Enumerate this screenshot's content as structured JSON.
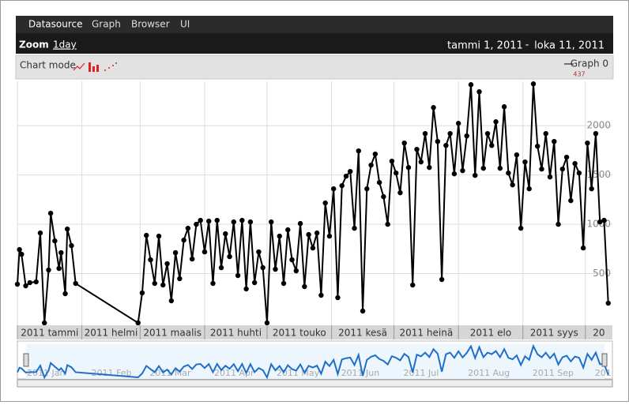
{
  "nav": [
    "Datasource",
    "Graph",
    "Browser",
    "UI"
  ],
  "zoom": {
    "label": "Zoom",
    "preset": "1day"
  },
  "range": {
    "start": "tammi 1, 2011",
    "separator": "-",
    "end": "loka 11, 2011"
  },
  "chart_mode": "Chart mode",
  "chart_data": {
    "type": "line",
    "x": [
      0,
      1,
      2,
      4,
      6,
      9,
      11,
      13,
      15,
      16,
      18,
      20,
      21,
      23,
      24,
      26,
      28,
      58,
      60,
      62,
      64,
      66,
      68,
      70,
      72,
      74,
      76,
      78,
      80,
      82,
      84,
      86,
      88,
      90,
      92,
      94,
      96,
      98,
      100,
      102,
      104,
      106,
      108,
      110,
      112,
      114,
      116,
      118,
      120,
      122,
      124,
      126,
      128,
      130,
      132,
      134,
      136,
      138,
      140,
      142,
      144,
      146,
      148,
      150,
      152,
      154,
      156,
      158,
      160,
      162,
      164,
      166,
      168,
      170,
      172,
      174,
      176,
      178,
      180,
      182,
      184,
      186,
      188,
      190,
      192,
      194,
      196,
      198,
      200,
      202,
      204,
      206,
      208,
      210,
      212,
      214,
      216,
      218,
      220,
      222,
      224,
      226,
      228,
      230,
      232,
      234,
      236,
      238,
      240,
      242,
      244,
      246,
      248,
      250,
      252,
      254,
      256,
      258,
      260,
      262,
      264,
      266,
      268,
      270,
      272,
      274,
      276,
      278,
      280,
      282,
      284
    ],
    "series": [
      {
        "name": "Graph 0",
        "color": "#000000",
        "overview_color": "#1f6fc9",
        "values": [
          392,
          744,
          696,
          376,
          408,
          416,
          912,
          0,
          536,
          1112,
          832,
          552,
          712,
          296,
          952,
          784,
          400,
          0,
          304,
          888,
          640,
          400,
          880,
          384,
          600,
          224,
          712,
          448,
          840,
          960,
          648,
          1000,
          1040,
          720,
          1032,
          400,
          1040,
          560,
          904,
          672,
          1024,
          480,
          1040,
          344,
          1024,
          408,
          720,
          560,
          0,
          1024,
          544,
          880,
          400,
          944,
          640,
          528,
          1008,
          368,
          896,
          760,
          912,
          280,
          1216,
          880,
          1360,
          256,
          1392,
          1488,
          1536,
          960,
          1744,
          120,
          1360,
          1600,
          1712,
          1424,
          1280,
          1000,
          1640,
          1520,
          1320,
          1824,
          1576,
          384,
          1760,
          1632,
          1920,
          1576,
          2184,
          1840,
          440,
          1800,
          1920,
          1512,
          2024,
          1544,
          1896,
          2416,
          1496,
          2344,
          1568,
          1920,
          1800,
          2040,
          1568,
          2192,
          1520,
          1400,
          1704,
          960,
          1632,
          1360,
          2424,
          1792,
          1560,
          1920,
          1480,
          1840,
          1000,
          1560,
          1680,
          1240,
          1616,
          1520,
          760,
          1824,
          1360,
          1920,
          1024,
          1040,
          200
        ]
      }
    ],
    "legend_value": 437,
    "xlim": [
      0,
      286
    ],
    "xticks": [
      {
        "value": 0,
        "label": "2011 tammi"
      },
      {
        "value": 31,
        "label": "2011 helmi"
      },
      {
        "value": 59,
        "label": "2011 maalis"
      },
      {
        "value": 90,
        "label": "2011 huhti"
      },
      {
        "value": 120,
        "label": "2011 touko"
      },
      {
        "value": 151,
        "label": "2011 kesä"
      },
      {
        "value": 181,
        "label": "2011 heinä"
      },
      {
        "value": 212,
        "label": "2011 elo"
      },
      {
        "value": 243,
        "label": "2011 syys"
      },
      {
        "value": 273,
        "label": "20"
      }
    ],
    "overview_xticks": [
      {
        "value": 0,
        "label": "2011 Jan"
      },
      {
        "value": 31,
        "label": "2011 Feb"
      },
      {
        "value": 59,
        "label": "2011 Mar"
      },
      {
        "value": 90,
        "label": "2011 Apr"
      },
      {
        "value": 120,
        "label": "2011 May"
      },
      {
        "value": 151,
        "label": "2011 Jun"
      },
      {
        "value": 181,
        "label": "2011 Jul"
      },
      {
        "value": 212,
        "label": "2011 Aug"
      },
      {
        "value": 243,
        "label": "2011 Sep"
      },
      {
        "value": 273,
        "label": "201"
      }
    ],
    "ylim": [
      0,
      2450
    ],
    "yticks": [
      500,
      1000,
      1500,
      2000
    ],
    "grid": true
  }
}
